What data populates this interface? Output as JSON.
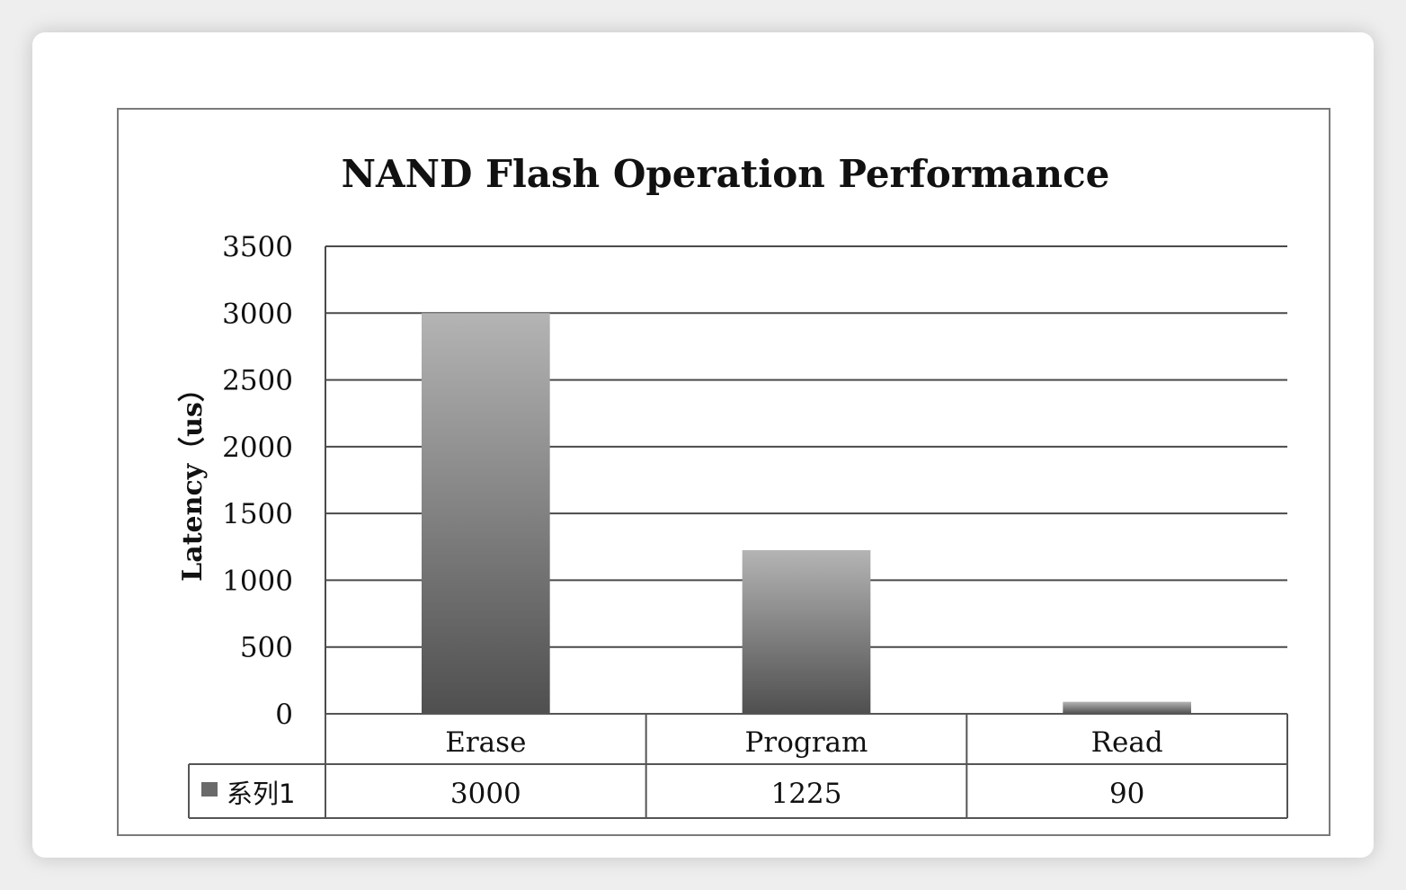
{
  "chart_data": {
    "type": "bar",
    "title": "NAND Flash Operation Performance",
    "ylabel": "Latency（us）",
    "xlabel": "",
    "categories": [
      "Erase",
      "Program",
      "Read"
    ],
    "series": [
      {
        "name": "系列1",
        "values": [
          3000,
          1225,
          90
        ]
      }
    ],
    "ylim": [
      0,
      3500
    ],
    "yticks": [
      0,
      500,
      1000,
      1500,
      2000,
      2500,
      3000,
      3500
    ],
    "grid": true,
    "legend": "data-table",
    "data_table": true,
    "bar_colors": {
      "top": "#b4b4b4",
      "bottom": "#4f4f4f"
    },
    "grid_color": "#4a4a4a"
  }
}
